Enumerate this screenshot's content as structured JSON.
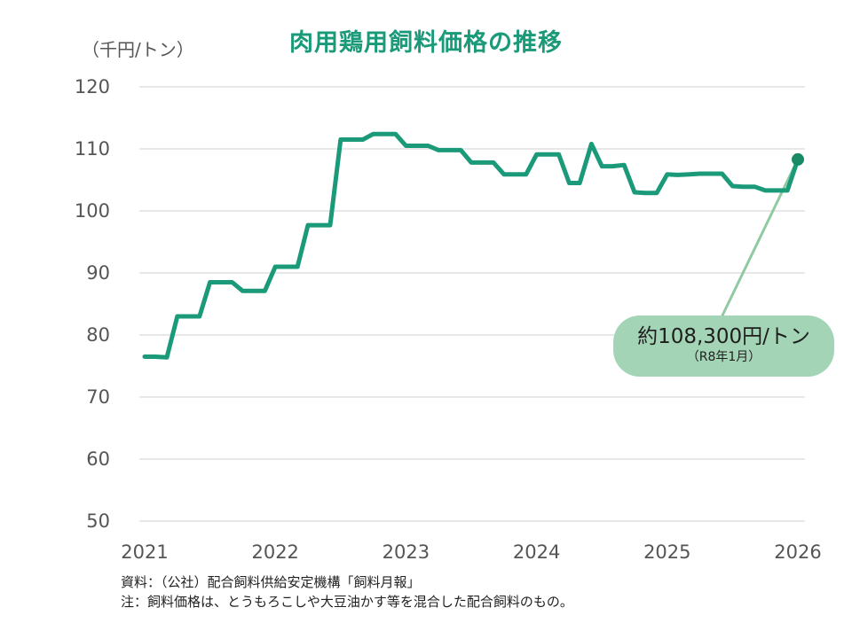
{
  "chart_data": {
    "type": "line",
    "title": "肉用鶏用飼料価格の推移",
    "ylabel": "（千円/トン）",
    "ylim": [
      50,
      120
    ],
    "yticks": [
      120,
      110,
      100,
      90,
      80,
      70,
      60,
      50
    ],
    "xlim": [
      2021,
      2026
    ],
    "xticks": [
      "2021",
      "2022",
      "2023",
      "2024",
      "2025",
      "2026"
    ],
    "grid": true,
    "line_color": "#1a9a78",
    "series": [
      {
        "x": [
          2021.0,
          2021.08,
          2021.17,
          2021.25,
          2021.33,
          2021.42,
          2021.5,
          2021.58,
          2021.67,
          2021.75,
          2021.83,
          2021.92,
          2022.0,
          2022.08,
          2022.17,
          2022.25,
          2022.33,
          2022.42,
          2022.5,
          2022.58,
          2022.67,
          2022.75,
          2022.83,
          2022.92,
          2023.0,
          2023.08,
          2023.17,
          2023.25,
          2023.33,
          2023.42,
          2023.5,
          2023.58,
          2023.67,
          2023.75,
          2023.83,
          2023.92,
          2024.0,
          2024.08,
          2024.17,
          2024.25,
          2024.33,
          2024.42,
          2024.5,
          2024.58,
          2024.67,
          2024.75,
          2024.83,
          2024.92,
          2025.0,
          2025.08,
          2025.17,
          2025.25,
          2025.33,
          2025.42,
          2025.5,
          2025.58,
          2025.67,
          2025.75,
          2025.83,
          2025.92,
          2026.0
        ],
        "values": [
          76.5,
          76.5,
          76.4,
          83.0,
          83.0,
          83.0,
          88.5,
          88.5,
          88.5,
          87.1,
          87.1,
          87.1,
          91.0,
          91.0,
          91.0,
          97.7,
          97.7,
          97.7,
          111.5,
          111.5,
          111.5,
          112.4,
          112.4,
          112.4,
          110.5,
          110.5,
          110.5,
          109.8,
          109.8,
          109.8,
          107.8,
          107.8,
          107.8,
          105.9,
          105.9,
          105.9,
          109.1,
          109.1,
          109.1,
          104.5,
          104.5,
          110.8,
          107.2,
          107.2,
          107.4,
          103.0,
          102.9,
          102.9,
          105.9,
          105.8,
          105.9,
          106.0,
          106.0,
          106.0,
          104.0,
          103.9,
          103.9,
          103.3,
          103.3,
          103.3,
          108.3
        ]
      }
    ],
    "highlight_point": {
      "x": 2026.0,
      "y": 108.3,
      "color": "#1a8a66"
    },
    "annotation": {
      "main": "約108,300円/トン",
      "sub": "（R8年1月）",
      "bg_color": "#a4d4b6",
      "leader_color": "#8fcaa3"
    }
  },
  "notes": [
    "資料：（公社）配合飼料供給安定機構「飼料月報」",
    "注：飼料価格は、とうもろこしや大豆油かす等を混合した配合飼料のもの。"
  ]
}
